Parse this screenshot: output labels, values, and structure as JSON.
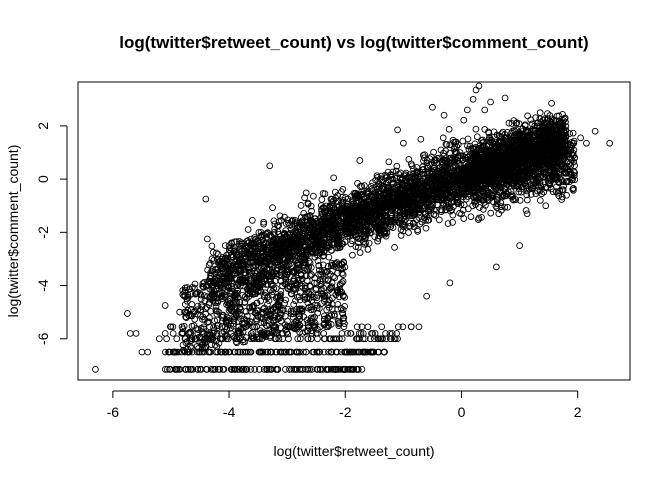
{
  "chart_data": {
    "type": "scatter",
    "title": "log(twitter$retweet_count) vs log(twitter$comment_count)",
    "xlabel": "log(twitter$retweet_count)",
    "ylabel": "log(twitter$comment_count)",
    "xlim": [
      -6.6,
      2.9
    ],
    "ylim": [
      -7.55,
      3.65
    ],
    "x_ticks": [
      -6,
      -4,
      -2,
      0,
      2
    ],
    "y_ticks": [
      -6,
      -4,
      -2,
      0,
      2
    ],
    "x_tick_labels": [
      "-6",
      "-4",
      "-2",
      "0",
      "2"
    ],
    "y_tick_labels": [
      "-6",
      "-4",
      "-2",
      "0",
      "2"
    ],
    "grid": false,
    "legend": "none",
    "marker": "open-circle",
    "point_color": "#000000",
    "series": [
      {
        "points": [
          [
            -6.3,
            -7.15
          ],
          [
            -5.75,
            -5.05
          ],
          [
            -4.4,
            -0.75
          ],
          [
            -3.3,
            0.5
          ],
          [
            -2.6,
            -1.55
          ],
          [
            -2.55,
            -1.6
          ],
          [
            -2.2,
            0.05
          ],
          [
            -1.75,
            0.7
          ],
          [
            -1.1,
            1.85
          ],
          [
            -0.5,
            2.7
          ],
          [
            -0.3,
            2.4
          ],
          [
            0.1,
            2.6
          ],
          [
            0.2,
            3.0
          ],
          [
            0.25,
            3.35
          ],
          [
            0.3,
            3.5
          ],
          [
            0.4,
            2.6
          ],
          [
            0.5,
            2.9
          ],
          [
            0.75,
            3.05
          ],
          [
            1.5,
            1.95
          ],
          [
            1.55,
            2.85
          ],
          [
            2.05,
            1.55
          ],
          [
            2.15,
            1.35
          ],
          [
            2.3,
            1.8
          ],
          [
            2.55,
            1.35
          ],
          [
            1.7,
            1.05
          ],
          [
            1.9,
            0.05
          ],
          [
            -5.7,
            -5.8
          ],
          [
            -5.6,
            -5.8
          ],
          [
            -5.1,
            -4.75
          ],
          [
            -4.85,
            -5.0
          ],
          [
            -4.6,
            -5.0
          ],
          [
            -3.9,
            -4.55
          ],
          [
            -3.3,
            -3.75
          ],
          [
            -3.0,
            -3.6
          ],
          [
            -2.85,
            -4.1
          ],
          [
            -1.7,
            -6.5
          ],
          [
            -1.8,
            -7.15
          ],
          [
            -1.55,
            -6.5
          ],
          [
            -1.5,
            -6.0
          ],
          [
            -5.5,
            -6.5
          ],
          [
            -5.4,
            -6.5
          ],
          [
            -5.2,
            -6.0
          ],
          [
            -5.0,
            -5.55
          ],
          [
            -4.8,
            -5.8
          ],
          [
            -3.6,
            -1.55
          ],
          [
            -3.1,
            -1.55
          ],
          [
            -3.45,
            -2.0
          ],
          [
            -2.35,
            -0.55
          ],
          [
            -1.25,
            0.65
          ],
          [
            -0.25,
            1.3
          ],
          [
            0.9,
            2.2
          ],
          [
            1.3,
            2.1
          ],
          [
            0.6,
            -3.3
          ],
          [
            1.0,
            -2.5
          ],
          [
            -0.6,
            -4.4
          ],
          [
            -0.2,
            -3.9
          ],
          [
            -2.2,
            -6.0
          ],
          [
            -2.0,
            -6.5
          ],
          [
            1.45,
            -1.0
          ],
          [
            1.75,
            -0.4
          ],
          [
            -1.0,
            1.35
          ],
          [
            -0.7,
            1.5
          ],
          [
            -2.7,
            -0.7
          ],
          [
            -4.0,
            -2.5
          ]
        ]
      }
    ]
  }
}
